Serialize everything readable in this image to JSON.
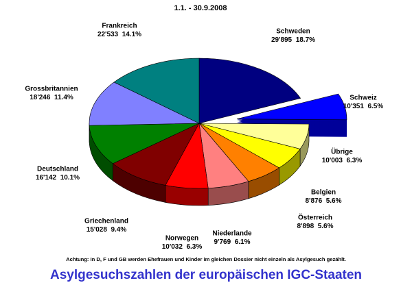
{
  "chart_data": {
    "type": "pie",
    "subtitle": "1.1. - 30.9.2008",
    "note": "Achtung: In D, F und GB werden Ehefrauen und Kinder im gleichen Dossier nicht einzeln als Asylgesuch gezählt.",
    "title": "Asylgesuchszahlen der europäischen IGC-Staaten",
    "categories": [
      "Schweden",
      "Schweiz",
      "Übrige",
      "Belgien",
      "Österreich",
      "Niederlande",
      "Norwegen",
      "Griechenland",
      "Deutschland",
      "Grossbritannien",
      "Frankreich"
    ],
    "values": [
      29895,
      10351,
      10003,
      8876,
      8898,
      9769,
      10032,
      15028,
      16142,
      18246,
      22533
    ],
    "value_labels": [
      "29'895",
      "10'351",
      "10'003",
      "8'876",
      "8'898",
      "9'769",
      "10'032",
      "15'028",
      "16'142",
      "18'246",
      "22'533"
    ],
    "percentages": [
      18.7,
      6.5,
      6.3,
      5.6,
      5.6,
      6.1,
      6.3,
      9.4,
      10.1,
      11.4,
      14.1
    ],
    "percentage_labels": [
      "18.7%",
      "6.5%",
      "6.3%",
      "5.6%",
      "5.6%",
      "6.1%",
      "6.3%",
      "9.4%",
      "10.1%",
      "11.4%",
      "14.1%"
    ],
    "colors": [
      "#000080",
      "#0000ff",
      "#ffff99",
      "#ffff00",
      "#ff8000",
      "#ff8080",
      "#ff0000",
      "#800000",
      "#008000",
      "#8080ff",
      "#008080"
    ],
    "exploded": "Schweiz",
    "title_color": "#3333cc"
  }
}
